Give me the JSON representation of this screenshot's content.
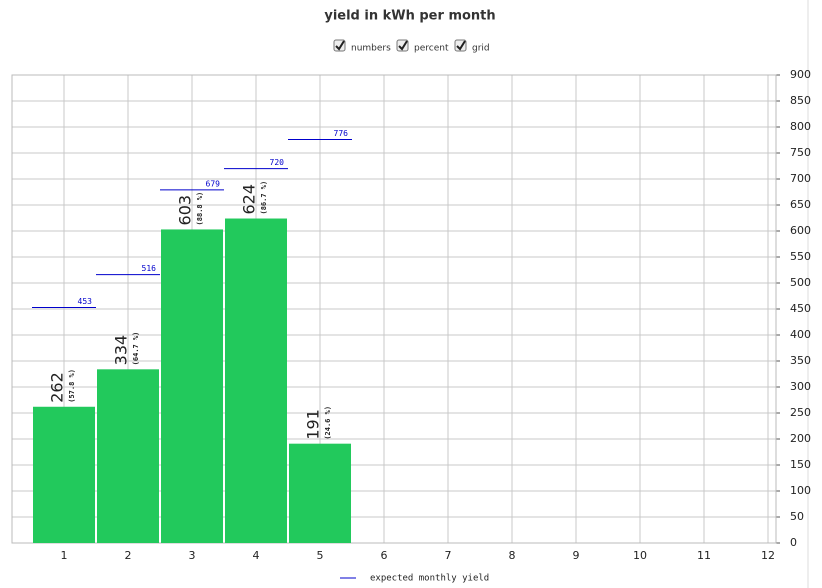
{
  "chart_data": {
    "type": "bar",
    "title": "yield in kWh per month",
    "controls": [
      {
        "label": "numbers",
        "checked": true
      },
      {
        "label": "percent",
        "checked": true
      },
      {
        "label": "grid",
        "checked": true
      }
    ],
    "categories": [
      "1",
      "2",
      "3",
      "4",
      "5",
      "6",
      "7",
      "8",
      "9",
      "10",
      "11",
      "12"
    ],
    "values": [
      262,
      334,
      603,
      624,
      191,
      null,
      null,
      null,
      null,
      null,
      null,
      null
    ],
    "color": "#22c95c",
    "percent": {
      "values": [
        57.8,
        64.7,
        88.8,
        86.7,
        24.6,
        null,
        null,
        null,
        null,
        null,
        null,
        null
      ],
      "value_labels": [
        "(57.8 %)",
        "(64.7 %)",
        "(88.8 %)",
        "(86.7 %)",
        "(24.6 %)",
        null,
        null,
        null,
        null,
        null,
        null,
        null
      ]
    },
    "expected": {
      "name": "expected monthly yield",
      "color": "#0000cc",
      "values": [
        453,
        516,
        679,
        720,
        776,
        null,
        null,
        null,
        null,
        null,
        null,
        null
      ]
    },
    "ylim": [
      0,
      900
    ],
    "yticks": [
      0,
      50,
      100,
      150,
      200,
      250,
      300,
      350,
      400,
      450,
      500,
      550,
      600,
      650,
      700,
      750,
      800,
      850,
      900
    ],
    "grid": true
  }
}
